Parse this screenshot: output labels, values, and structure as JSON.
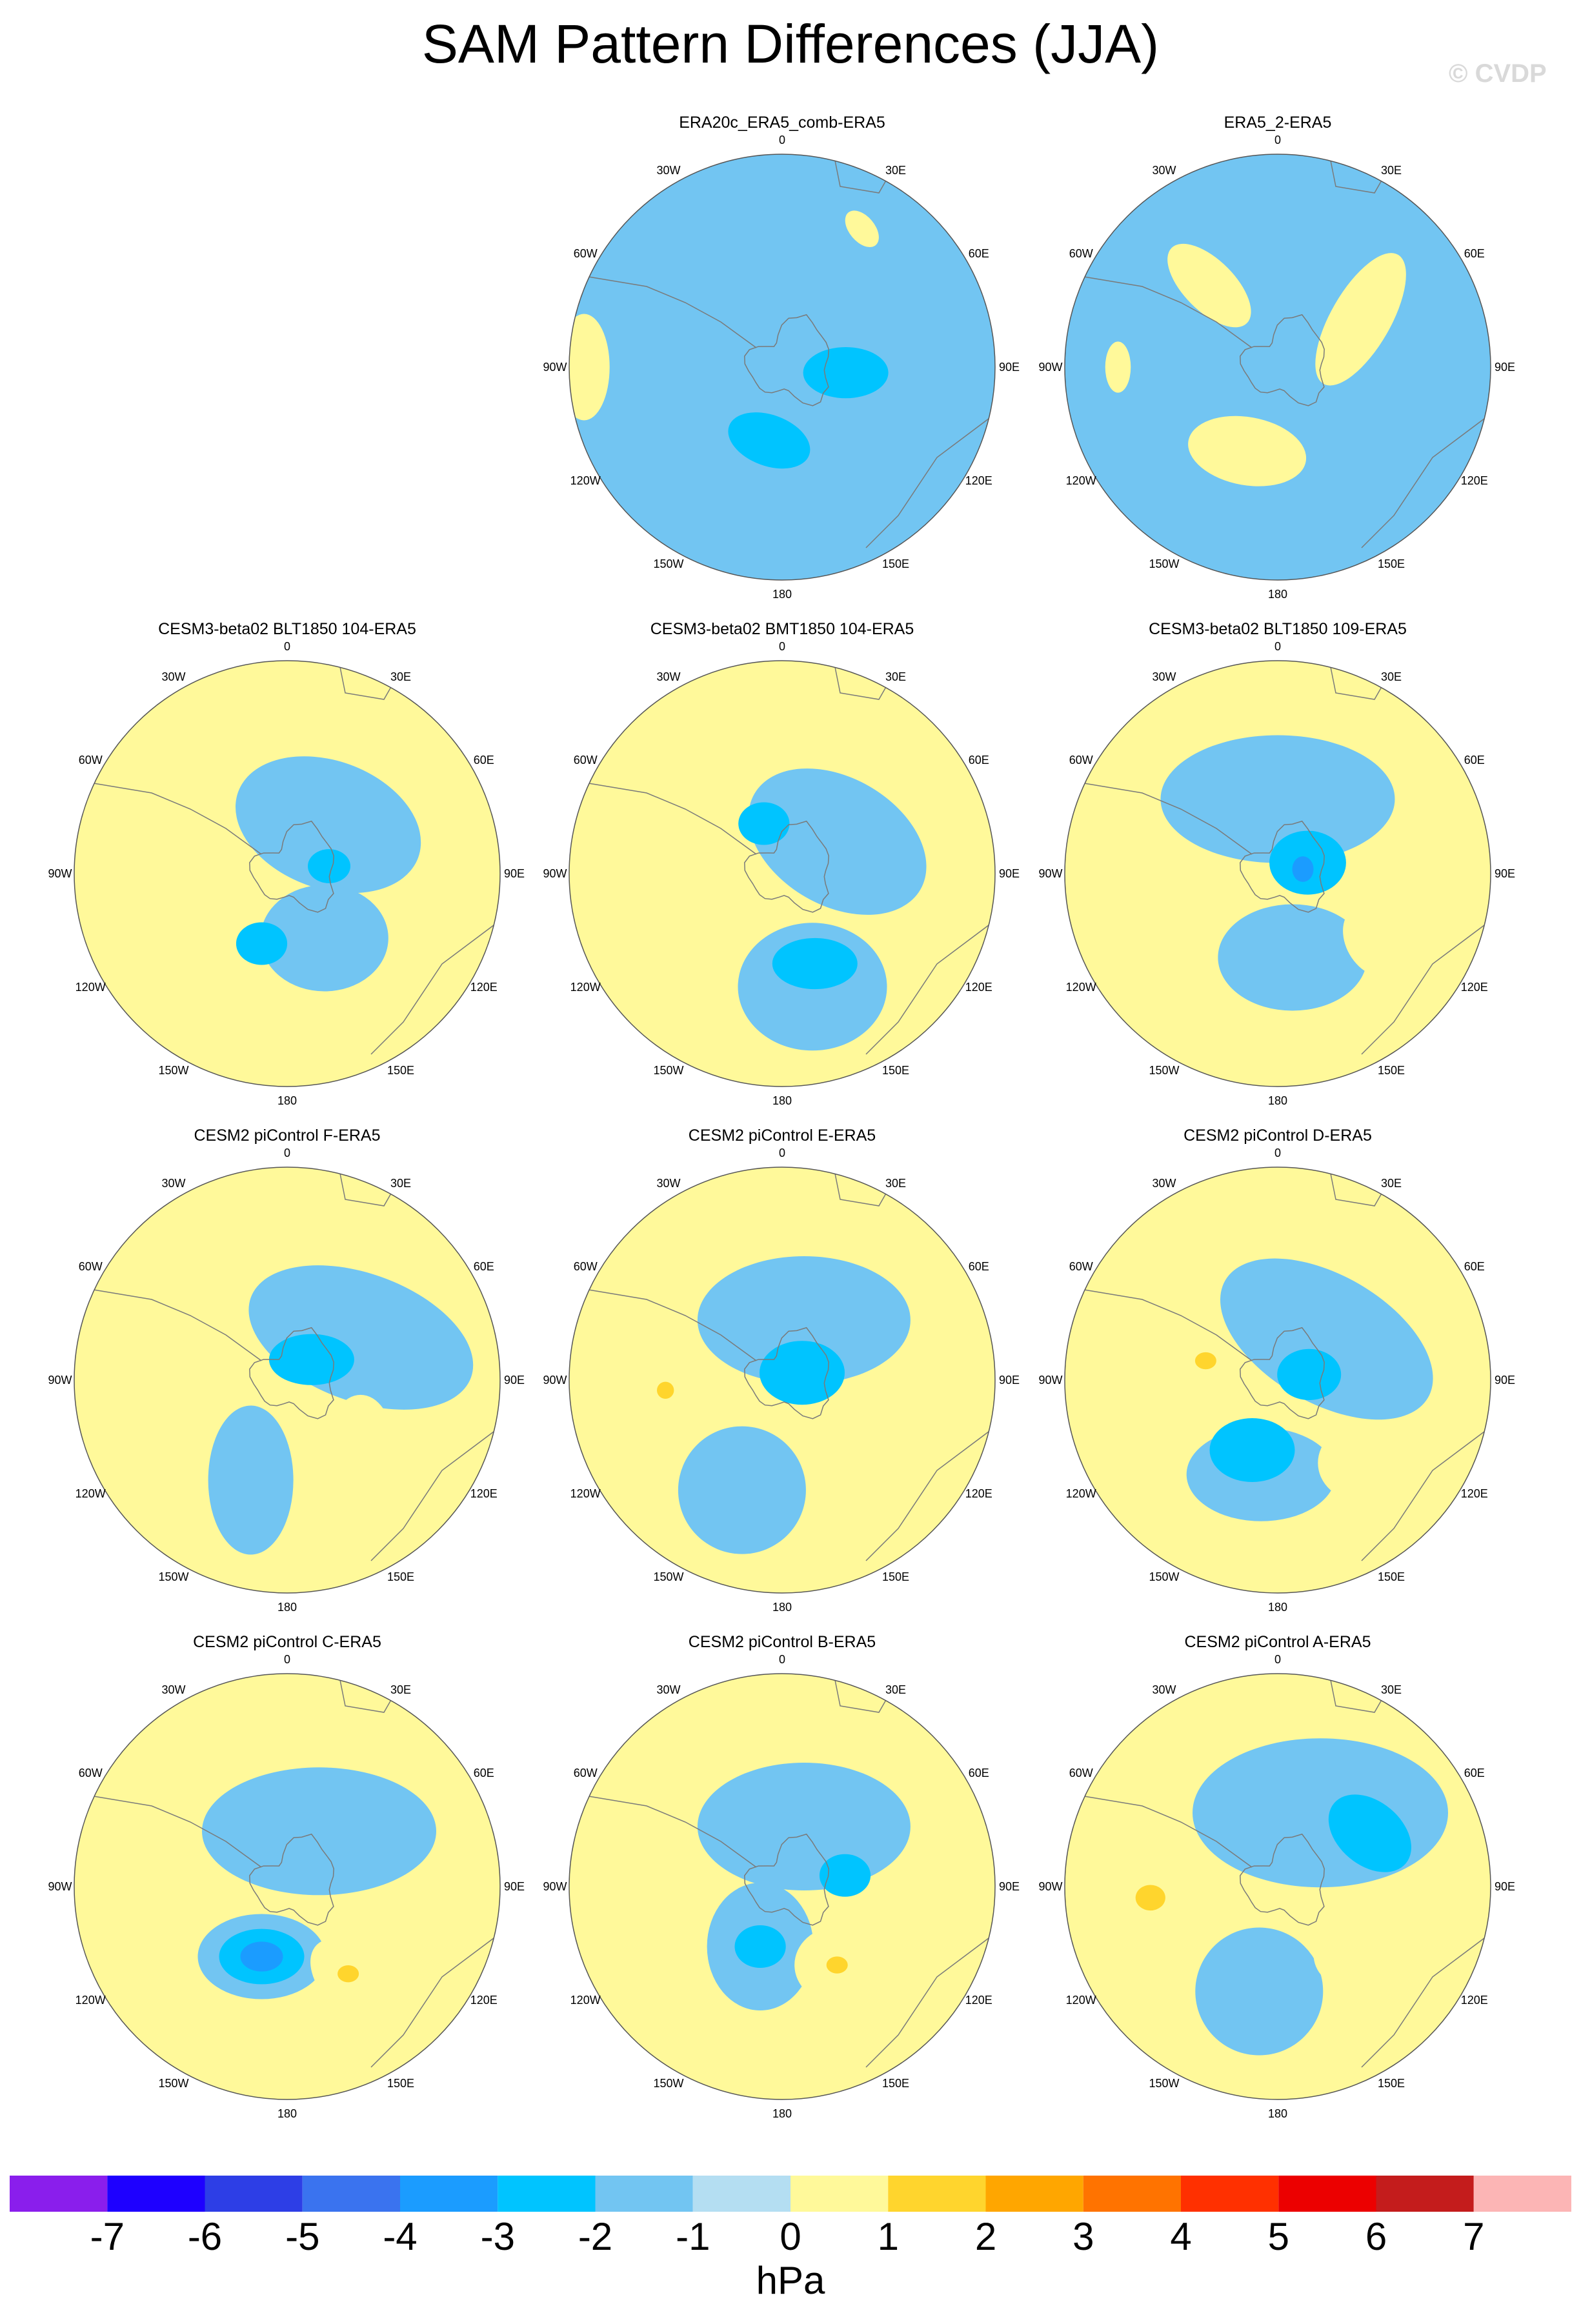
{
  "title": "SAM Pattern Differences (JJA)",
  "watermark": "© CVDP",
  "longitude_labels": [
    "0",
    "30E",
    "60E",
    "90E",
    "120E",
    "150E",
    "180",
    "150W",
    "120W",
    "90W",
    "60W",
    "30W"
  ],
  "panels": [
    {
      "id": "p1",
      "title": "ERA20c_ERA5_comb-ERA5",
      "row": 0,
      "col": 1,
      "base": -1,
      "anomalies": [
        {
          "lon": 190,
          "r": 0.35,
          "val": -2,
          "ax": 0.2,
          "ay": 0.12,
          "rot": 20
        },
        {
          "lon": 95,
          "r": 0.3,
          "val": -2,
          "ax": 0.2,
          "ay": 0.12,
          "rot": 0
        },
        {
          "lon": 30,
          "r": 0.75,
          "val": 0,
          "ax": 0.1,
          "ay": 0.06,
          "rot": 50
        },
        {
          "lon": 270,
          "r": 0.93,
          "val": 0,
          "ax": 0.25,
          "ay": 0.12,
          "rot": 90
        }
      ]
    },
    {
      "id": "p2",
      "title": "ERA5_2-ERA5",
      "row": 0,
      "col": 2,
      "base": -1,
      "anomalies": [
        {
          "lon": 60,
          "r": 0.45,
          "val": 0,
          "ax": 0.35,
          "ay": 0.14,
          "rot": 120
        },
        {
          "lon": 200,
          "r": 0.42,
          "val": 0,
          "ax": 0.28,
          "ay": 0.16,
          "rot": 10
        },
        {
          "lon": 320,
          "r": 0.5,
          "val": 0,
          "ax": 0.25,
          "ay": 0.12,
          "rot": 45
        },
        {
          "lon": 270,
          "r": 0.75,
          "val": 0,
          "ax": 0.12,
          "ay": 0.06,
          "rot": 90
        }
      ]
    },
    {
      "id": "p3",
      "title": "CESM3-beta02 BLT1850 104-ERA5",
      "row": 1,
      "col": 0,
      "base": 0,
      "anomalies": [
        {
          "lon": 40,
          "r": 0.3,
          "val": -1,
          "ax": 0.45,
          "ay": 0.3,
          "rot": 20
        },
        {
          "lon": 150,
          "r": 0.35,
          "val": -1,
          "ax": 0.3,
          "ay": 0.25,
          "rot": 0
        },
        {
          "lon": 200,
          "r": 0.35,
          "val": -2,
          "ax": 0.12,
          "ay": 0.1,
          "rot": 0
        },
        {
          "lon": 80,
          "r": 0.2,
          "val": -2,
          "ax": 0.1,
          "ay": 0.08,
          "rot": 0
        },
        {
          "lon": 268,
          "r": 0.72,
          "val": 1,
          "ax": 0.18,
          "ay": 0.15,
          "rot": 0
        }
      ]
    },
    {
      "id": "p4",
      "title": "CESM3-beta02 BMT1850 104-ERA5",
      "row": 1,
      "col": 1,
      "base": 0,
      "anomalies": [
        {
          "lon": 60,
          "r": 0.3,
          "val": -1,
          "ax": 0.45,
          "ay": 0.3,
          "rot": 30
        },
        {
          "lon": 165,
          "r": 0.55,
          "val": -1,
          "ax": 0.35,
          "ay": 0.3,
          "rot": 0
        },
        {
          "lon": 160,
          "r": 0.45,
          "val": -2,
          "ax": 0.2,
          "ay": 0.12,
          "rot": 0
        },
        {
          "lon": 340,
          "r": 0.25,
          "val": -2,
          "ax": 0.12,
          "ay": 0.1,
          "rot": 0
        },
        {
          "lon": 262,
          "r": 0.62,
          "val": 1,
          "ax": 0.22,
          "ay": 0.18,
          "rot": 0
        }
      ]
    },
    {
      "id": "p5",
      "title": "CESM3-beta02 BLT1850 109-ERA5",
      "row": 1,
      "col": 2,
      "base": 0,
      "anomalies": [
        {
          "lon": 0,
          "r": 0.35,
          "val": -1,
          "ax": 0.55,
          "ay": 0.3,
          "rot": 0
        },
        {
          "lon": 170,
          "r": 0.4,
          "val": -1,
          "ax": 0.35,
          "ay": 0.25,
          "rot": 0
        },
        {
          "lon": 70,
          "r": 0.15,
          "val": -2,
          "ax": 0.18,
          "ay": 0.15,
          "rot": 0
        },
        {
          "lon": 80,
          "r": 0.12,
          "val": -3,
          "ax": 0.05,
          "ay": 0.06,
          "rot": 0
        },
        {
          "lon": 245,
          "r": 0.6,
          "val": 1,
          "ax": 0.18,
          "ay": 0.15,
          "rot": 0
        },
        {
          "lon": 125,
          "r": 0.55,
          "val": 1,
          "ax": 0.18,
          "ay": 0.13,
          "rot": 60
        }
      ]
    },
    {
      "id": "p6",
      "title": "CESM2 piControl F-ERA5",
      "row": 2,
      "col": 0,
      "base": 0,
      "anomalies": [
        {
          "lon": 60,
          "r": 0.4,
          "val": -1,
          "ax": 0.55,
          "ay": 0.3,
          "rot": 20
        },
        {
          "lon": 200,
          "r": 0.5,
          "val": -1,
          "ax": 0.2,
          "ay": 0.35,
          "rot": 0
        },
        {
          "lon": 50,
          "r": 0.15,
          "val": -2,
          "ax": 0.2,
          "ay": 0.12,
          "rot": 0
        },
        {
          "lon": 270,
          "r": 0.62,
          "val": 1,
          "ax": 0.2,
          "ay": 0.25,
          "rot": 0
        },
        {
          "lon": 130,
          "r": 0.45,
          "val": 1,
          "ax": 0.15,
          "ay": 0.22,
          "rot": 0
        },
        {
          "lon": 340,
          "r": 0.65,
          "val": 1,
          "ax": 0.1,
          "ay": 0.05,
          "rot": 0
        }
      ]
    },
    {
      "id": "p7",
      "title": "CESM2 piControl E-ERA5",
      "row": 2,
      "col": 1,
      "base": 0,
      "anomalies": [
        {
          "lon": 20,
          "r": 0.3,
          "val": -1,
          "ax": 0.5,
          "ay": 0.3,
          "rot": 0
        },
        {
          "lon": 200,
          "r": 0.55,
          "val": -1,
          "ax": 0.3,
          "ay": 0.3,
          "rot": 0
        },
        {
          "lon": 70,
          "r": 0.1,
          "val": -2,
          "ax": 0.2,
          "ay": 0.15,
          "rot": 0
        },
        {
          "lon": 265,
          "r": 0.55,
          "val": 1,
          "ax": 0.22,
          "ay": 0.15,
          "rot": 0
        },
        {
          "lon": 265,
          "r": 0.55,
          "val": 2,
          "ax": 0.04,
          "ay": 0.04,
          "rot": 0
        },
        {
          "lon": 130,
          "r": 0.55,
          "val": 1,
          "ax": 0.15,
          "ay": 0.22,
          "rot": 20
        }
      ]
    },
    {
      "id": "p8",
      "title": "CESM2 piControl D-ERA5",
      "row": 2,
      "col": 2,
      "base": 0,
      "anomalies": [
        {
          "lon": 50,
          "r": 0.3,
          "val": -1,
          "ax": 0.55,
          "ay": 0.3,
          "rot": 30
        },
        {
          "lon": 190,
          "r": 0.45,
          "val": -1,
          "ax": 0.35,
          "ay": 0.22,
          "rot": 0
        },
        {
          "lon": 200,
          "r": 0.35,
          "val": -2,
          "ax": 0.2,
          "ay": 0.15,
          "rot": 0
        },
        {
          "lon": 80,
          "r": 0.15,
          "val": -2,
          "ax": 0.15,
          "ay": 0.12,
          "rot": 0
        },
        {
          "lon": 280,
          "r": 0.4,
          "val": 1,
          "ax": 0.22,
          "ay": 0.15,
          "rot": 0
        },
        {
          "lon": 285,
          "r": 0.35,
          "val": 2,
          "ax": 0.05,
          "ay": 0.04,
          "rot": 0
        },
        {
          "lon": 135,
          "r": 0.55,
          "val": 1,
          "ax": 0.2,
          "ay": 0.18,
          "rot": 0
        }
      ]
    },
    {
      "id": "p9",
      "title": "CESM2 piControl C-ERA5",
      "row": 3,
      "col": 0,
      "base": 0,
      "anomalies": [
        {
          "lon": 30,
          "r": 0.3,
          "val": -1,
          "ax": 0.55,
          "ay": 0.3,
          "rot": 0
        },
        {
          "lon": 200,
          "r": 0.35,
          "val": -1,
          "ax": 0.3,
          "ay": 0.2,
          "rot": 0
        },
        {
          "lon": 200,
          "r": 0.35,
          "val": -2,
          "ax": 0.2,
          "ay": 0.13,
          "rot": 0
        },
        {
          "lon": 200,
          "r": 0.35,
          "val": -3,
          "ax": 0.1,
          "ay": 0.07,
          "rot": 0
        },
        {
          "lon": 270,
          "r": 0.55,
          "val": 1,
          "ax": 0.22,
          "ay": 0.15,
          "rot": 0
        },
        {
          "lon": 145,
          "r": 0.55,
          "val": 1,
          "ax": 0.25,
          "ay": 0.15,
          "rot": 45
        },
        {
          "lon": 145,
          "r": 0.5,
          "val": 2,
          "ax": 0.05,
          "ay": 0.04,
          "rot": 0
        }
      ]
    },
    {
      "id": "p10",
      "title": "CESM2 piControl B-ERA5",
      "row": 3,
      "col": 1,
      "base": 0,
      "anomalies": [
        {
          "lon": 20,
          "r": 0.3,
          "val": -1,
          "ax": 0.5,
          "ay": 0.3,
          "rot": 0
        },
        {
          "lon": 200,
          "r": 0.3,
          "val": -1,
          "ax": 0.25,
          "ay": 0.3,
          "rot": 0
        },
        {
          "lon": 200,
          "r": 0.3,
          "val": -2,
          "ax": 0.12,
          "ay": 0.1,
          "rot": 0
        },
        {
          "lon": 80,
          "r": 0.3,
          "val": -2,
          "ax": 0.12,
          "ay": 0.1,
          "rot": 0
        },
        {
          "lon": 265,
          "r": 0.6,
          "val": 1,
          "ax": 0.15,
          "ay": 0.15,
          "rot": 0
        },
        {
          "lon": 145,
          "r": 0.45,
          "val": 1,
          "ax": 0.2,
          "ay": 0.18,
          "rot": 0
        },
        {
          "lon": 145,
          "r": 0.45,
          "val": 2,
          "ax": 0.05,
          "ay": 0.04,
          "rot": 0
        }
      ]
    },
    {
      "id": "p11",
      "title": "CESM2 piControl A-ERA5",
      "row": 3,
      "col": 2,
      "base": 0,
      "anomalies": [
        {
          "lon": 30,
          "r": 0.4,
          "val": -1,
          "ax": 0.6,
          "ay": 0.35,
          "rot": 0
        },
        {
          "lon": 190,
          "r": 0.5,
          "val": -1,
          "ax": 0.3,
          "ay": 0.3,
          "rot": 0
        },
        {
          "lon": 60,
          "r": 0.5,
          "val": -2,
          "ax": 0.22,
          "ay": 0.15,
          "rot": 40
        },
        {
          "lon": 265,
          "r": 0.62,
          "val": 1,
          "ax": 0.25,
          "ay": 0.2,
          "rot": 0
        },
        {
          "lon": 265,
          "r": 0.6,
          "val": 2,
          "ax": 0.07,
          "ay": 0.06,
          "rot": 0
        },
        {
          "lon": 135,
          "r": 0.45,
          "val": 1,
          "ax": 0.15,
          "ay": 0.15,
          "rot": 0
        }
      ]
    }
  ],
  "colorbar": {
    "colors": [
      "#8a1eec",
      "#1e00ff",
      "#2d3ee6",
      "#3a73ef",
      "#1b9cff",
      "#00c4ff",
      "#72c5f2",
      "#b4def2",
      "#fff99a",
      "#ffd52d",
      "#ffa600",
      "#ff7300",
      "#ff3000",
      "#ec0000",
      "#c41c1c",
      "#fcb5b5"
    ],
    "labels": [
      "-7",
      "-6",
      "-5",
      "-4",
      "-3",
      "-2",
      "-1",
      "0",
      "1",
      "2",
      "3",
      "4",
      "5",
      "6",
      "7"
    ],
    "units": "hPa"
  }
}
